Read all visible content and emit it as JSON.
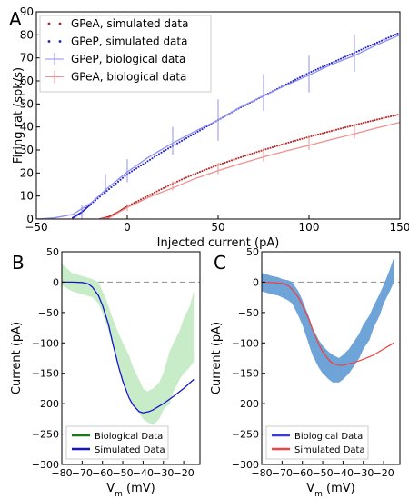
{
  "chart_data": [
    {
      "panel_label": "A",
      "type": "scatter",
      "xlabel": "Injected current (pA)",
      "ylabel": "Firing rat (spk/s)",
      "xlim": [
        -50,
        150
      ],
      "ylim": [
        0,
        90
      ],
      "xticks": [
        "−50",
        "0",
        "50",
        "100",
        "150"
      ],
      "xtick_values": [
        -50,
        0,
        50,
        100,
        150
      ],
      "yticks": [
        "0",
        "10",
        "20",
        "30",
        "40",
        "50",
        "60",
        "70",
        "80",
        "90"
      ],
      "ytick_values": [
        0,
        10,
        20,
        30,
        40,
        50,
        60,
        70,
        80,
        90
      ],
      "grid": false,
      "legend_position": "top-left",
      "legend": [
        {
          "label": "GPeA, simulated data",
          "color": "#b22222",
          "marker": "dots"
        },
        {
          "label": "GPeP, simulated data",
          "color": "#1a1acc",
          "marker": "dots"
        },
        {
          "label": "GPeP, biological data",
          "color": "#8f8ff0",
          "marker": "errorbar"
        },
        {
          "label": "GPeA, biological data",
          "color": "#f08f8f",
          "marker": "errorbar"
        }
      ],
      "series": [
        {
          "name": "GPeA, simulated data",
          "color": "#b22222",
          "style": "dots",
          "x": [
            -15,
            -10,
            -5,
            0,
            10,
            20,
            30,
            40,
            50,
            60,
            70,
            80,
            90,
            100,
            110,
            120,
            130,
            140,
            150
          ],
          "y": [
            0,
            1,
            3,
            5.5,
            9.5,
            13.5,
            17.2,
            20.5,
            23.5,
            26.2,
            28.8,
            31.2,
            33.5,
            35.7,
            37.8,
            39.8,
            41.8,
            43.7,
            45.5
          ]
        },
        {
          "name": "GPeP, simulated data",
          "color": "#1a1acc",
          "style": "dots",
          "x": [
            -30,
            -25,
            -20,
            -10,
            0,
            10,
            20,
            30,
            40,
            50,
            60,
            70,
            80,
            90,
            100,
            110,
            120,
            130,
            140,
            150
          ],
          "y": [
            0.5,
            3,
            6.5,
            13,
            19.5,
            24.5,
            29.5,
            34,
            38.5,
            43,
            47.5,
            51.5,
            55.5,
            59.5,
            63.5,
            67,
            70.5,
            74,
            77.5,
            81
          ]
        },
        {
          "name": "GPeP, biological data",
          "color": "#8f8ff0",
          "style": "line",
          "x": [
            -50,
            -40,
            -30,
            -20,
            -10,
            0,
            12,
            25,
            37,
            50,
            62,
            75,
            87,
            100,
            112,
            125,
            137,
            150
          ],
          "y": [
            0,
            0.5,
            2,
            7,
            14,
            20.5,
            27,
            33,
            38,
            43,
            48.5,
            53.5,
            58,
            62.5,
            67,
            71,
            75.5,
            80
          ],
          "error_x": [
            -25,
            -12,
            0,
            25,
            50,
            75,
            100,
            125
          ],
          "error_y": [
            2,
            15,
            21,
            34,
            43,
            55,
            63,
            72
          ],
          "error_half": [
            4,
            4.5,
            5,
            6,
            9,
            8,
            8,
            8
          ]
        },
        {
          "name": "GPeA, biological data",
          "color": "#f08f8f",
          "style": "line",
          "x": [
            -50,
            -30,
            -15,
            -10,
            0,
            12,
            25,
            37,
            50,
            62,
            75,
            87,
            100,
            112,
            125,
            137,
            150
          ],
          "y": [
            0,
            0,
            0,
            0.5,
            5,
            9.5,
            13.5,
            17.5,
            21,
            24,
            27,
            29.5,
            32,
            34.5,
            37,
            39.5,
            42
          ],
          "error_x": [
            -12,
            0,
            25,
            50,
            75,
            100,
            125
          ],
          "error_y": [
            0.5,
            5,
            14.5,
            22,
            28,
            33,
            38
          ],
          "error_half": [
            1,
            1.5,
            2,
            2.5,
            3,
            3,
            3
          ]
        }
      ]
    },
    {
      "panel_label": "B",
      "type": "line",
      "xlabel": "V",
      "xlabel_sub": "m",
      "xlabel_unit": " (mV)",
      "ylabel": "Current (pA)",
      "xlim": [
        -80,
        -12
      ],
      "ylim": [
        -300,
        50
      ],
      "xticks": [
        "−80",
        "−70",
        "−60",
        "−50",
        "−40",
        "−30",
        "−20"
      ],
      "xtick_values": [
        -80,
        -70,
        -60,
        -50,
        -40,
        -30,
        -20
      ],
      "yticks": [
        "−300",
        "−250",
        "−200",
        "−150",
        "−100",
        "−50",
        "0",
        "50"
      ],
      "ytick_values": [
        -300,
        -250,
        -200,
        -150,
        -100,
        -50,
        0,
        50
      ],
      "grid": false,
      "zero_line": true,
      "legend_position": "bottom-left",
      "legend": [
        {
          "label": "Biological Data",
          "color": "#1a7a1a"
        },
        {
          "label": "Simulated Data",
          "color": "#1414cc"
        }
      ],
      "series": [
        {
          "name": "Biological Data",
          "color": "#c8ecc8",
          "style": "band",
          "x": [
            -80,
            -75,
            -70,
            -65,
            -62,
            -60,
            -58,
            -55,
            -52,
            -50,
            -47,
            -45,
            -42,
            -40,
            -38,
            -35,
            -32,
            -30,
            -27,
            -25,
            -22,
            -20,
            -17,
            -15
          ],
          "upper": [
            30,
            15,
            10,
            5,
            0,
            -15,
            -30,
            -60,
            -85,
            -100,
            -120,
            -140,
            -160,
            -175,
            -180,
            -175,
            -165,
            -150,
            -115,
            -100,
            -80,
            -60,
            -40,
            -15
          ],
          "lower": [
            -5,
            -15,
            -20,
            -25,
            -35,
            -50,
            -70,
            -100,
            -140,
            -160,
            -185,
            -200,
            -215,
            -225,
            -230,
            -235,
            -225,
            -210,
            -200,
            -180,
            -160,
            -150,
            -140,
            -130
          ]
        },
        {
          "name": "Simulated Data",
          "color": "#1414cc",
          "style": "line",
          "x": [
            -80,
            -75,
            -70,
            -67,
            -65,
            -62,
            -60,
            -57,
            -55,
            -52,
            -50,
            -47,
            -45,
            -42,
            -40,
            -37,
            -35,
            -30,
            -25,
            -20,
            -15
          ],
          "y": [
            0,
            0,
            -0.5,
            -3,
            -8,
            -22,
            -38,
            -70,
            -100,
            -140,
            -163,
            -190,
            -202,
            -213,
            -215,
            -213,
            -210,
            -200,
            -188,
            -175,
            -160
          ]
        }
      ]
    },
    {
      "panel_label": "C",
      "type": "line",
      "xlabel": "V",
      "xlabel_sub": "m",
      "xlabel_unit": " (mV)",
      "ylabel": "Current (pA)",
      "xlim": [
        -80,
        -12
      ],
      "ylim": [
        -300,
        50
      ],
      "xticks": [
        "−80",
        "−70",
        "−60",
        "−50",
        "−40",
        "−30",
        "−20"
      ],
      "xtick_values": [
        -80,
        -70,
        -60,
        -50,
        -40,
        -30,
        -20
      ],
      "yticks": [
        "−300",
        "−250",
        "−200",
        "−150",
        "−100",
        "−50",
        "0",
        "50"
      ],
      "ytick_values": [
        -300,
        -250,
        -200,
        -150,
        -100,
        -50,
        0,
        50
      ],
      "grid": false,
      "zero_line": true,
      "legend_position": "bottom-left",
      "legend": [
        {
          "label": "Biological Data",
          "color": "#3b3bdd"
        },
        {
          "label": "Simulated Data",
          "color": "#ee4444"
        }
      ],
      "series": [
        {
          "name": "Biological Data",
          "color": "#6fa4d8",
          "style": "band",
          "x": [
            -80,
            -77,
            -75,
            -72,
            -70,
            -67,
            -65,
            -62,
            -60,
            -57,
            -55,
            -52,
            -50,
            -47,
            -45,
            -42,
            -40,
            -37,
            -35,
            -32,
            -30,
            -27,
            -25,
            -22,
            -20,
            -17,
            -15
          ],
          "upper": [
            15,
            12,
            10,
            8,
            5,
            3,
            0,
            -15,
            -30,
            -55,
            -75,
            -95,
            -105,
            -115,
            -120,
            -125,
            -120,
            -110,
            -100,
            -85,
            -70,
            -55,
            -40,
            -20,
            -5,
            20,
            40
          ],
          "lower": [
            -15,
            -18,
            -20,
            -22,
            -25,
            -30,
            -35,
            -55,
            -70,
            -100,
            -120,
            -140,
            -150,
            -160,
            -165,
            -165,
            -160,
            -150,
            -140,
            -125,
            -110,
            -95,
            -75,
            -55,
            -35,
            -15,
            0
          ]
        },
        {
          "name": "Simulated Data",
          "color": "#ee4444",
          "style": "line",
          "x": [
            -80,
            -75,
            -70,
            -67,
            -65,
            -62,
            -60,
            -57,
            -55,
            -52,
            -50,
            -47,
            -45,
            -42,
            -40,
            -38,
            -35,
            -30,
            -25,
            -20,
            -15
          ],
          "y": [
            0,
            -0.5,
            -2,
            -6,
            -12,
            -25,
            -38,
            -60,
            -78,
            -102,
            -115,
            -128,
            -134,
            -137,
            -137,
            -135,
            -133,
            -127,
            -120,
            -110,
            -100
          ]
        }
      ]
    }
  ]
}
